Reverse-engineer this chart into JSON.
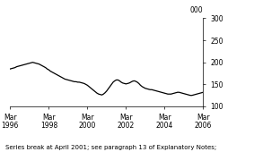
{
  "title": "",
  "ylabel": "000",
  "footnote": "Series break at April 2001; see paragraph 13 of Explanatory Notes;",
  "ylim": [
    100,
    300
  ],
  "yticks": [
    100,
    150,
    200,
    250,
    300
  ],
  "xtick_positions": [
    0,
    24,
    48,
    72,
    96,
    120
  ],
  "xtick_labels": [
    "Mar\n1996",
    "Mar\n1998",
    "Mar\n2000",
    "Mar\n2002",
    "Mar\n2004",
    "Mar\n2006"
  ],
  "line_color": "#000000",
  "line_width": 0.9,
  "values": [
    185,
    186,
    187,
    188,
    190,
    191,
    192,
    193,
    194,
    195,
    196,
    197,
    198,
    199,
    200,
    199,
    198,
    197,
    196,
    194,
    192,
    190,
    188,
    185,
    183,
    180,
    178,
    176,
    174,
    172,
    170,
    168,
    166,
    164,
    162,
    161,
    160,
    159,
    158,
    157,
    156,
    156,
    155,
    155,
    154,
    153,
    152,
    150,
    148,
    145,
    142,
    139,
    136,
    133,
    130,
    128,
    127,
    126,
    128,
    131,
    135,
    140,
    145,
    150,
    155,
    158,
    160,
    160,
    158,
    155,
    153,
    152,
    151,
    152,
    153,
    155,
    157,
    158,
    157,
    155,
    152,
    148,
    145,
    143,
    141,
    140,
    139,
    138,
    138,
    137,
    136,
    135,
    134,
    133,
    132,
    131,
    130,
    129,
    128,
    128,
    128,
    129,
    130,
    131,
    132,
    132,
    131,
    130,
    129,
    128,
    127,
    126,
    125,
    125,
    126,
    127,
    128,
    129,
    130,
    131,
    132
  ],
  "background_color": "#ffffff",
  "spine_color": "#000000",
  "font_size_ticks": 5.5,
  "font_size_footnote": 5.0,
  "font_size_ylabel": 5.5
}
